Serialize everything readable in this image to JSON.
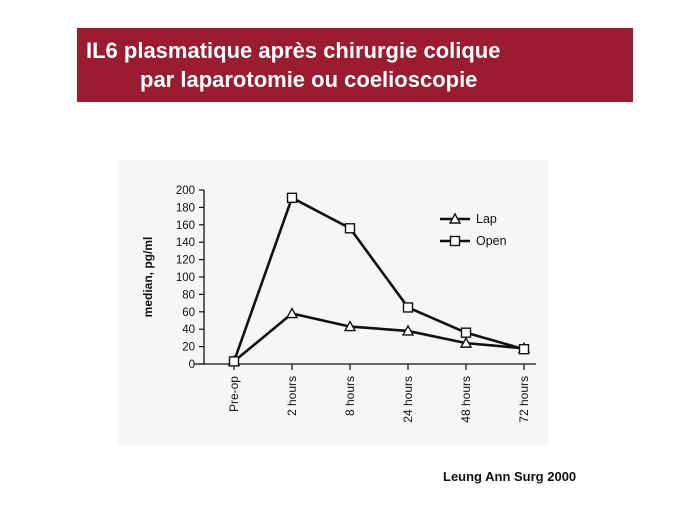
{
  "title": {
    "line1": "IL6 plasmatique après chirurgie colique",
    "line2": "par laparotomie ou coelioscopie"
  },
  "source": "Leung Ann Surg 2000",
  "colors": {
    "banner": "#9b1b30",
    "banner_text": "#ffffff",
    "ink": "#111111",
    "panel": "#f6f6f6"
  },
  "chart_data": {
    "type": "line",
    "ylabel": "median, pg/ml",
    "xlabel": "",
    "categories": [
      "Pre-op",
      "2 hours",
      "8 hours",
      "24 hours",
      "48 hours",
      "72 hours"
    ],
    "ylim": [
      0,
      200
    ],
    "yticks": [
      0,
      20,
      40,
      60,
      80,
      100,
      120,
      140,
      160,
      180,
      200
    ],
    "ytick_labels": [
      "0",
      "20",
      "40",
      "60",
      "80",
      "100",
      "120",
      "140",
      "160",
      "180",
      "200"
    ],
    "grid": false,
    "legend_position": "top-right",
    "series": [
      {
        "name": "Lap",
        "marker": "triangle",
        "values": [
          3,
          58,
          43,
          38,
          24,
          18
        ]
      },
      {
        "name": "Open",
        "marker": "square",
        "values": [
          3,
          191,
          156,
          65,
          36,
          17
        ]
      }
    ]
  }
}
